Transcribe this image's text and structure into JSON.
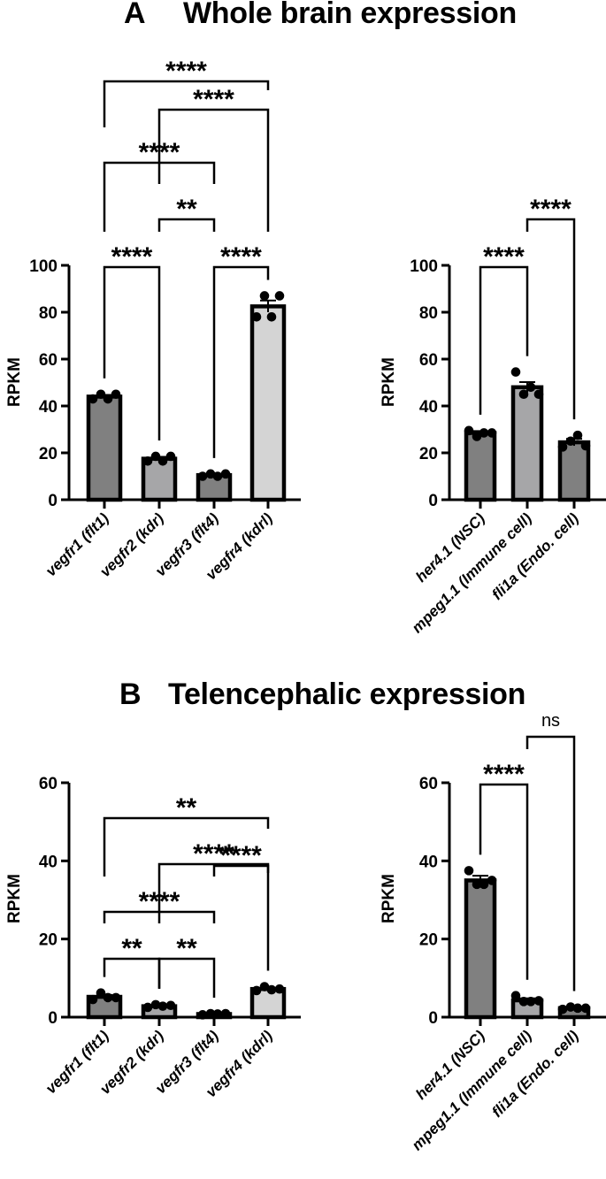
{
  "panels": {
    "A": {
      "letter": "A",
      "title": "Whole brain expression"
    },
    "B": {
      "letter": "B",
      "title": "Telencephalic expression"
    }
  },
  "colors": {
    "dark_gray": "#808080",
    "mid_gray": "#a6a6a8",
    "light_gray": "#d4d4d4",
    "stroke": "#000000"
  },
  "chart_data": [
    {
      "id": "A-left",
      "type": "bar",
      "panel": "A",
      "title": "",
      "xlabel": "",
      "ylabel": "RPKM",
      "ylim": [
        0,
        100
      ],
      "yticks": [
        0,
        20,
        40,
        60,
        80,
        100
      ],
      "categories": [
        "vegfr1 (flt1)",
        "vegfr2 (kdr)",
        "vegfr3 (flt4)",
        "vegfr4 (kdrl)"
      ],
      "values": [
        44,
        17.5,
        10.5,
        82.5
      ],
      "sem": [
        0.7,
        0.8,
        0.4,
        2.5
      ],
      "bar_colors": [
        "dark_gray",
        "mid_gray",
        "dark_gray",
        "light_gray"
      ],
      "points": [
        [
          43,
          45,
          43,
          45
        ],
        [
          16.5,
          18.5,
          16.5,
          18.5
        ],
        [
          10,
          11,
          10,
          11
        ],
        [
          78,
          87,
          78,
          87
        ]
      ],
      "comparisons": [
        {
          "from": 0,
          "to": 1,
          "label": "****"
        },
        {
          "from": 2,
          "to": 3,
          "label": "****"
        },
        {
          "from": 1,
          "to": 2,
          "label": "**"
        },
        {
          "from": 0,
          "to": 2,
          "label": "****"
        },
        {
          "from": 1,
          "to": 3,
          "label": "****"
        },
        {
          "from": 0,
          "to": 3,
          "label": "****"
        }
      ]
    },
    {
      "id": "A-right",
      "type": "bar",
      "panel": "A",
      "title": "",
      "xlabel": "",
      "ylabel": "RPKM",
      "ylim": [
        0,
        100
      ],
      "yticks": [
        0,
        20,
        40,
        60,
        80,
        100
      ],
      "categories": [
        "her4.1 (NSC)",
        "mpeg1.1 (Immune cell)",
        "fli1a (Endo. cell)"
      ],
      "values": [
        28.5,
        48,
        24.5
      ],
      "sem": [
        0.8,
        2.2,
        1.5
      ],
      "bar_colors": [
        "dark_gray",
        "mid_gray",
        "dark_gray"
      ],
      "points": [
        [
          29.5,
          27,
          28.5,
          28.5
        ],
        [
          54.5,
          45,
          48,
          45
        ],
        [
          22.5,
          25,
          27.5,
          23
        ]
      ],
      "comparisons": [
        {
          "from": 0,
          "to": 1,
          "label": "****"
        },
        {
          "from": 1,
          "to": 2,
          "label": "****"
        }
      ]
    },
    {
      "id": "B-left",
      "type": "bar",
      "panel": "B",
      "title": "",
      "xlabel": "",
      "ylabel": "RPKM",
      "ylim": [
        0,
        60
      ],
      "yticks": [
        0,
        20,
        40,
        60
      ],
      "categories": [
        "vegfr1 (flt1)",
        "vegfr2 (kdr)",
        "vegfr3 (flt4)",
        "vegfr4 (kdrl)"
      ],
      "values": [
        5.2,
        2.8,
        0.8,
        7.2
      ],
      "sem": [
        0.5,
        0.3,
        0.1,
        0.3
      ],
      "bar_colors": [
        "dark_gray",
        "mid_gray",
        "dark_gray",
        "light_gray"
      ],
      "points": [
        [
          4.5,
          6.2,
          5.0,
          5.0
        ],
        [
          2.5,
          3.2,
          2.8,
          3.0
        ],
        [
          0.6,
          0.9,
          0.8,
          0.9
        ],
        [
          6.8,
          7.8,
          7.0,
          7.2
        ]
      ],
      "comparisons": [
        {
          "from": 0,
          "to": 1,
          "label": "**"
        },
        {
          "from": 1,
          "to": 2,
          "label": "**"
        },
        {
          "from": 0,
          "to": 2,
          "label": "****"
        },
        {
          "from": 2,
          "to": 3,
          "label": "****"
        },
        {
          "from": 1,
          "to": 3,
          "label": "****"
        },
        {
          "from": 0,
          "to": 3,
          "label": "**"
        }
      ]
    },
    {
      "id": "B-right",
      "type": "bar",
      "panel": "B",
      "title": "",
      "xlabel": "",
      "ylabel": "RPKM",
      "ylim": [
        0,
        60
      ],
      "yticks": [
        0,
        20,
        40,
        60
      ],
      "categories": [
        "her4.1 (NSC)",
        "mpeg1.1 (Immune cell)",
        "fli1a (Endo. cell)"
      ],
      "values": [
        35,
        4.3,
        2.3
      ],
      "sem": [
        1.2,
        0.5,
        0.2
      ],
      "bar_colors": [
        "dark_gray",
        "mid_gray",
        "dark_gray"
      ],
      "points": [
        [
          37.5,
          34,
          34,
          35
        ],
        [
          5.5,
          4,
          4,
          4.2
        ],
        [
          2.0,
          2.6,
          2.3,
          2.3
        ]
      ],
      "comparisons": [
        {
          "from": 0,
          "to": 1,
          "label": "****"
        },
        {
          "from": 1,
          "to": 2,
          "label": "ns"
        }
      ]
    }
  ]
}
